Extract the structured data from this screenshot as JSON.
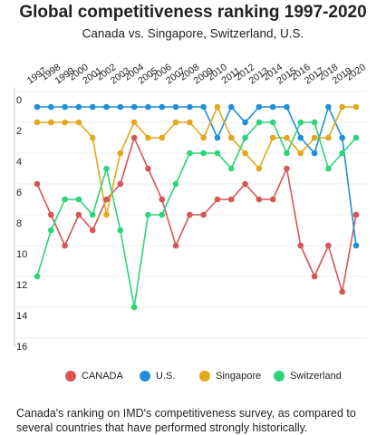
{
  "chart_data": {
    "type": "line",
    "title": "Global competitiveness ranking 1997-2020",
    "subtitle": "Canada vs. Singapore, Switzerland, U.S.",
    "caption": "Canada's ranking on IMD's competitiveness survey, as compared to several countries that have performed strongly historically.",
    "categories": [
      "1997",
      "1998",
      "1999",
      "2000",
      "2001",
      "2002",
      "2003",
      "2004",
      "2005",
      "2006",
      "2007",
      "2008",
      "2009",
      "2010",
      "2011",
      "2012",
      "2013",
      "2014",
      "2015",
      "2016",
      "2017",
      "2018",
      "2019",
      "2020"
    ],
    "series": [
      {
        "name": "CANADA",
        "color": "#d65555",
        "values": [
          6,
          8,
          10,
          8,
          9,
          7,
          6,
          3,
          5,
          7,
          10,
          8,
          8,
          7,
          7,
          6,
          7,
          7,
          5,
          10,
          12,
          10,
          13,
          8
        ]
      },
      {
        "name": "U.S.",
        "color": "#1f8fd8",
        "values": [
          1,
          1,
          1,
          1,
          1,
          1,
          1,
          1,
          1,
          1,
          1,
          1,
          1,
          3,
          1,
          2,
          1,
          1,
          1,
          3,
          4,
          1,
          3,
          10
        ]
      },
      {
        "name": "Singapore",
        "color": "#e3a71c",
        "values": [
          2,
          2,
          2,
          2,
          3,
          8,
          4,
          2,
          3,
          3,
          2,
          2,
          3,
          1,
          3,
          4,
          5,
          3,
          3,
          4,
          3,
          3,
          1,
          1
        ]
      },
      {
        "name": "Switzerland",
        "color": "#2ed47a",
        "values": [
          12,
          9,
          7,
          7,
          8,
          5,
          9,
          14,
          8,
          8,
          6,
          4,
          4,
          4,
          5,
          3,
          2,
          2,
          4,
          2,
          2,
          5,
          4,
          3
        ]
      }
    ],
    "ylim": [
      0,
      16
    ],
    "yticks": [
      0,
      2,
      4,
      6,
      8,
      10,
      12,
      14,
      16
    ],
    "y_inverted": true,
    "grid": true,
    "legend": "bottom"
  }
}
